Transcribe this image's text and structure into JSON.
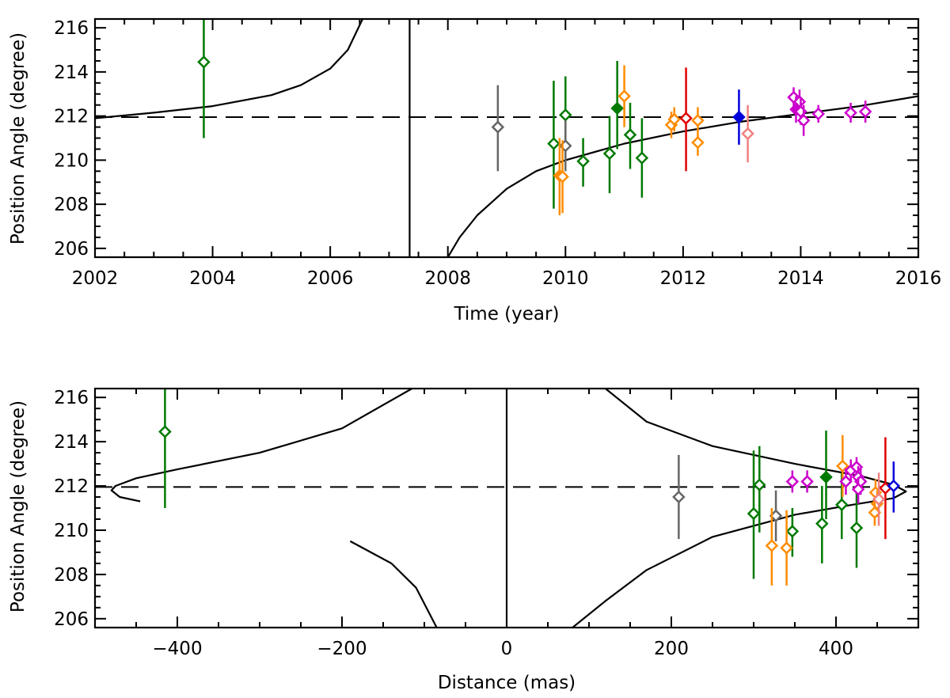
{
  "chart_data": [
    {
      "type": "scatter",
      "title": "",
      "xlabel": "Time (year)",
      "ylabel": "Position Angle (degree)",
      "xlim": [
        2002,
        2016
      ],
      "ylim": [
        205.6,
        216.4
      ],
      "x_ticks": [
        2002,
        2004,
        2006,
        2008,
        2010,
        2012,
        2014,
        2016
      ],
      "x_tick_labels": [
        "2002",
        "2004",
        "2006",
        "2008",
        "2010",
        "2012",
        "2014",
        "2016"
      ],
      "y_ticks": [
        206,
        208,
        210,
        212,
        214,
        216
      ],
      "y_tick_labels": [
        "206",
        "208",
        "210",
        "212",
        "214",
        "216"
      ],
      "reference_line": {
        "style": "dashed",
        "y": 211.95
      },
      "vertical_line": {
        "x": 2007.35
      },
      "model_curve": [
        [
          2002.0,
          211.9
        ],
        [
          2003.0,
          212.15
        ],
        [
          2004.0,
          212.45
        ],
        [
          2005.0,
          212.95
        ],
        [
          2005.5,
          213.4
        ],
        [
          2006.0,
          214.15
        ],
        [
          2006.3,
          215.0
        ],
        [
          2006.55,
          216.4
        ],
        null,
        [
          2008.0,
          205.6
        ],
        [
          2008.2,
          206.5
        ],
        [
          2008.5,
          207.5
        ],
        [
          2009.0,
          208.7
        ],
        [
          2009.5,
          209.5
        ],
        [
          2010.0,
          210.0
        ],
        [
          2011.0,
          210.75
        ],
        [
          2012.0,
          211.3
        ],
        [
          2013.0,
          211.75
        ],
        [
          2014.0,
          212.1
        ],
        [
          2015.0,
          212.45
        ],
        [
          2016.0,
          212.9
        ]
      ],
      "series": [
        {
          "name": "green",
          "color": "#007a00",
          "points": [
            {
              "x": 2003.85,
              "y": 214.45,
              "err": [
                211.0,
                216.4
              ],
              "filled": false
            },
            {
              "x": 2009.8,
              "y": 210.75,
              "err": [
                207.8,
                213.6
              ],
              "filled": false
            },
            {
              "x": 2010.0,
              "y": 212.05,
              "err": [
                209.9,
                213.8
              ],
              "filled": false
            },
            {
              "x": 2010.3,
              "y": 209.95,
              "err": [
                208.8,
                211.0
              ],
              "filled": false
            },
            {
              "x": 2010.75,
              "y": 210.3,
              "err": [
                208.5,
                212.0
              ],
              "filled": false
            },
            {
              "x": 2010.88,
              "y": 212.35,
              "err": [
                210.5,
                214.5
              ],
              "filled": true
            },
            {
              "x": 2011.1,
              "y": 211.15,
              "err": [
                209.6,
                212.6
              ],
              "filled": false
            },
            {
              "x": 2011.3,
              "y": 210.1,
              "err": [
                208.3,
                211.9
              ],
              "filled": false
            }
          ]
        },
        {
          "name": "gray",
          "color": "#666666",
          "points": [
            {
              "x": 2008.85,
              "y": 211.5,
              "err": [
                209.5,
                213.4
              ],
              "filled": false
            },
            {
              "x": 2010.0,
              "y": 210.65,
              "err": [
                209.5,
                211.8
              ],
              "filled": false
            }
          ]
        },
        {
          "name": "orange",
          "color": "#ff8c00",
          "points": [
            {
              "x": 2009.9,
              "y": 209.3,
              "err": [
                207.5,
                211.0
              ],
              "filled": true
            },
            {
              "x": 2009.95,
              "y": 209.25,
              "err": [
                207.6,
                210.9
              ],
              "filled": false
            },
            {
              "x": 2011.0,
              "y": 212.9,
              "err": [
                211.5,
                214.3
              ],
              "filled": false
            },
            {
              "x": 2011.8,
              "y": 211.6,
              "err": [
                211.0,
                212.2
              ],
              "filled": false
            },
            {
              "x": 2011.85,
              "y": 211.85,
              "err": [
                211.3,
                212.4
              ],
              "filled": false
            },
            {
              "x": 2012.25,
              "y": 211.8,
              "err": [
                211.3,
                212.4
              ],
              "filled": false
            },
            {
              "x": 2012.25,
              "y": 210.8,
              "err": [
                210.2,
                211.4
              ],
              "filled": false
            }
          ]
        },
        {
          "name": "red",
          "color": "#e00000",
          "points": [
            {
              "x": 2012.05,
              "y": 211.9,
              "err": [
                209.5,
                214.2
              ],
              "filled": false
            }
          ]
        },
        {
          "name": "blue",
          "color": "#0000dd",
          "points": [
            {
              "x": 2012.95,
              "y": 211.95,
              "err": [
                210.7,
                213.2
              ],
              "filled": true
            }
          ]
        },
        {
          "name": "pink",
          "color": "#f08080",
          "points": [
            {
              "x": 2013.1,
              "y": 211.2,
              "err": [
                209.9,
                212.5
              ],
              "filled": false
            }
          ]
        },
        {
          "name": "magenta",
          "color": "#cc00cc",
          "points": [
            {
              "x": 2013.88,
              "y": 212.85,
              "err": [
                212.3,
                213.3
              ],
              "filled": false
            },
            {
              "x": 2013.92,
              "y": 212.3,
              "err": [
                211.7,
                212.9
              ],
              "filled": true
            },
            {
              "x": 2013.98,
              "y": 212.65,
              "err": [
                212.1,
                213.2
              ],
              "filled": false
            },
            {
              "x": 2014.0,
              "y": 212.2,
              "err": [
                211.6,
                212.8
              ],
              "filled": false
            },
            {
              "x": 2014.05,
              "y": 211.8,
              "err": [
                211.1,
                212.5
              ],
              "filled": false
            },
            {
              "x": 2014.3,
              "y": 212.1,
              "err": [
                211.7,
                212.5
              ],
              "filled": false
            },
            {
              "x": 2014.85,
              "y": 212.15,
              "err": [
                211.7,
                212.6
              ],
              "filled": false
            },
            {
              "x": 2015.1,
              "y": 212.2,
              "err": [
                211.7,
                212.7
              ],
              "filled": false
            }
          ]
        }
      ]
    },
    {
      "type": "scatter",
      "title": "",
      "xlabel": "Distance (mas)",
      "ylabel": "Position Angle (degree)",
      "xlim": [
        -500,
        500
      ],
      "ylim": [
        205.6,
        216.4
      ],
      "x_ticks": [
        -400,
        -200,
        0,
        200,
        400
      ],
      "x_tick_labels": [
        "−400",
        "−200",
        "0",
        "200",
        "400"
      ],
      "y_ticks": [
        206,
        208,
        210,
        212,
        214,
        216
      ],
      "y_tick_labels": [
        "206",
        "208",
        "210",
        "212",
        "214",
        "216"
      ],
      "reference_line": {
        "style": "dashed",
        "y": 211.95
      },
      "vertical_line": {
        "x": 0
      },
      "model_curves": [
        [
          [
            -115,
            216.4
          ],
          [
            -200,
            214.6
          ],
          [
            -300,
            213.5
          ],
          [
            -400,
            212.75
          ],
          [
            -450,
            212.35
          ],
          [
            -475,
            212.0
          ],
          [
            -480,
            211.8
          ],
          [
            -470,
            211.5
          ],
          [
            -445,
            211.3
          ]
        ],
        [
          [
            -190,
            209.5
          ],
          [
            -140,
            208.5
          ],
          [
            -110,
            207.4
          ],
          [
            -85,
            205.6
          ]
        ],
        [
          [
            120,
            216.4
          ],
          [
            170,
            214.9
          ],
          [
            250,
            213.8
          ],
          [
            350,
            213.0
          ],
          [
            430,
            212.45
          ],
          [
            470,
            212.05
          ],
          [
            485,
            211.75
          ],
          [
            470,
            211.45
          ],
          [
            420,
            211.15
          ],
          [
            350,
            210.7
          ],
          [
            250,
            209.7
          ],
          [
            170,
            208.2
          ],
          [
            120,
            206.8
          ],
          [
            80,
            205.6
          ]
        ]
      ],
      "series": [
        {
          "name": "green",
          "color": "#007a00",
          "points": [
            {
              "x": -415,
              "y": 214.45,
              "err": [
                211.0,
                216.4
              ],
              "filled": false
            },
            {
              "x": 300,
              "y": 210.75,
              "err": [
                207.8,
                213.6
              ],
              "filled": false
            },
            {
              "x": 307,
              "y": 212.05,
              "err": [
                209.9,
                213.8
              ],
              "filled": false
            },
            {
              "x": 347,
              "y": 209.95,
              "err": [
                208.8,
                211.0
              ],
              "filled": false
            },
            {
              "x": 383,
              "y": 210.3,
              "err": [
                208.5,
                212.0
              ],
              "filled": false
            },
            {
              "x": 388,
              "y": 212.4,
              "err": [
                210.5,
                214.5
              ],
              "filled": true
            },
            {
              "x": 407,
              "y": 211.15,
              "err": [
                209.6,
                212.6
              ],
              "filled": false
            },
            {
              "x": 425,
              "y": 210.1,
              "err": [
                208.3,
                211.9
              ],
              "filled": false
            }
          ]
        },
        {
          "name": "gray",
          "color": "#666666",
          "points": [
            {
              "x": 209,
              "y": 211.5,
              "err": [
                209.6,
                213.4
              ],
              "filled": false
            },
            {
              "x": 327,
              "y": 210.65,
              "err": [
                209.5,
                211.8
              ],
              "filled": false
            }
          ]
        },
        {
          "name": "orange",
          "color": "#ff8c00",
          "points": [
            {
              "x": 322,
              "y": 209.3,
              "err": [
                207.5,
                211.0
              ],
              "filled": false
            },
            {
              "x": 340,
              "y": 209.2,
              "err": [
                207.5,
                210.9
              ],
              "filled": false
            },
            {
              "x": 408,
              "y": 212.9,
              "err": [
                211.5,
                214.3
              ],
              "filled": false
            },
            {
              "x": 448,
              "y": 211.7,
              "err": [
                211.1,
                212.3
              ],
              "filled": false
            },
            {
              "x": 450,
              "y": 211.2,
              "err": [
                210.6,
                211.8
              ],
              "filled": false
            },
            {
              "x": 447,
              "y": 210.8,
              "err": [
                210.2,
                211.4
              ],
              "filled": false
            }
          ]
        },
        {
          "name": "red",
          "color": "#e00000",
          "points": [
            {
              "x": 460,
              "y": 211.9,
              "err": [
                209.6,
                214.2
              ],
              "filled": false
            }
          ]
        },
        {
          "name": "blue",
          "color": "#0000dd",
          "points": [
            {
              "x": 470,
              "y": 212.0,
              "err": [
                210.8,
                213.1
              ],
              "filled": false
            }
          ]
        },
        {
          "name": "pink",
          "color": "#f08080",
          "points": [
            {
              "x": 452,
              "y": 211.4,
              "err": [
                210.2,
                212.6
              ],
              "filled": false
            }
          ]
        },
        {
          "name": "magenta",
          "color": "#cc00cc",
          "points": [
            {
              "x": 347,
              "y": 212.2,
              "err": [
                211.7,
                212.7
              ],
              "filled": false
            },
            {
              "x": 365,
              "y": 212.2,
              "err": [
                211.7,
                212.7
              ],
              "filled": false
            },
            {
              "x": 412,
              "y": 212.2,
              "err": [
                211.6,
                212.8
              ],
              "filled": false
            },
            {
              "x": 418,
              "y": 212.7,
              "err": [
                212.2,
                213.2
              ],
              "filled": false
            },
            {
              "x": 425,
              "y": 212.85,
              "err": [
                212.3,
                213.3
              ],
              "filled": false
            },
            {
              "x": 427,
              "y": 212.4,
              "err": [
                211.9,
                212.9
              ],
              "filled": false
            },
            {
              "x": 430,
              "y": 212.2,
              "err": [
                211.6,
                212.8
              ],
              "filled": false
            },
            {
              "x": 427,
              "y": 211.85,
              "err": [
                211.2,
                212.4
              ],
              "filled": false
            }
          ]
        }
      ]
    }
  ]
}
